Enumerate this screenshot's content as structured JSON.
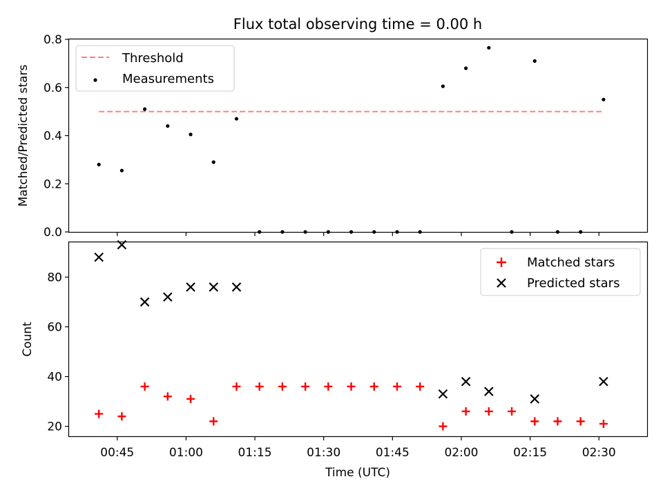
{
  "figure": {
    "title": "Flux total observing time = 0.00 h",
    "xlabel": "Time (UTC)",
    "x_ticks": [
      "00:45",
      "01:00",
      "01:15",
      "01:30",
      "01:45",
      "02:00",
      "02:15",
      "02:30"
    ],
    "x_tick_minutes": [
      45,
      60,
      75,
      90,
      105,
      120,
      135,
      150
    ],
    "xlim_minutes": [
      34.5,
      160.5
    ]
  },
  "chart_data": [
    {
      "type": "scatter",
      "ylabel": "Matched/Predicted stars",
      "ylim": [
        0,
        0.8
      ],
      "y_ticks": [
        "0.0",
        "0.2",
        "0.4",
        "0.6",
        "0.8"
      ],
      "y_tick_values": [
        0,
        0.2,
        0.4,
        0.6,
        0.8
      ],
      "legend": {
        "position": "upper-left",
        "entries": [
          "Threshold",
          "Measurements"
        ]
      },
      "threshold": {
        "name": "Threshold",
        "value": 0.5,
        "x_range": [
          "00:41",
          "02:31"
        ],
        "color": "#ff7f7f",
        "style": "dashed"
      },
      "series": [
        {
          "name": "Measurements",
          "color": "#000000",
          "marker": "dot",
          "x": [
            "00:41",
            "00:46",
            "00:51",
            "00:56",
            "01:01",
            "01:06",
            "01:11",
            "01:16",
            "01:21",
            "01:26",
            "01:31",
            "01:36",
            "01:41",
            "01:46",
            "01:51",
            "01:56",
            "02:01",
            "02:06",
            "02:11",
            "02:16",
            "02:21",
            "02:26",
            "02:31"
          ],
          "y": [
            0.28,
            0.255,
            0.51,
            0.44,
            0.405,
            0.29,
            0.47,
            0,
            0,
            0,
            0,
            0,
            0,
            0,
            0,
            0.605,
            0.68,
            0.765,
            0,
            0.71,
            0,
            0,
            0.55
          ]
        }
      ]
    },
    {
      "type": "scatter",
      "ylabel": "Count",
      "ylim": [
        16,
        94
      ],
      "y_ticks": [
        "20",
        "40",
        "60",
        "80"
      ],
      "y_tick_values": [
        20,
        40,
        60,
        80
      ],
      "legend": {
        "position": "upper-right",
        "entries": [
          "Matched stars",
          "Predicted stars"
        ]
      },
      "series": [
        {
          "name": "Matched stars",
          "color": "#ff0000",
          "marker": "plus",
          "x": [
            "00:41",
            "00:46",
            "00:51",
            "00:56",
            "01:01",
            "01:06",
            "01:11",
            "01:16",
            "01:21",
            "01:26",
            "01:31",
            "01:36",
            "01:41",
            "01:46",
            "01:51",
            "01:56",
            "02:01",
            "02:06",
            "02:11",
            "02:16",
            "02:21",
            "02:26",
            "02:31"
          ],
          "y": [
            25,
            24,
            36,
            32,
            31,
            22,
            36,
            36,
            36,
            36,
            36,
            36,
            36,
            36,
            36,
            20,
            26,
            26,
            26,
            22,
            22,
            22,
            21
          ]
        },
        {
          "name": "Predicted stars",
          "color": "#000000",
          "marker": "x",
          "x": [
            "00:41",
            "00:46",
            "00:51",
            "00:56",
            "01:01",
            "01:06",
            "01:11",
            "01:56",
            "02:01",
            "02:06",
            "02:16",
            "02:31"
          ],
          "y": [
            88,
            93,
            70,
            72,
            76,
            76,
            76,
            33,
            38,
            34,
            31,
            38
          ]
        }
      ]
    }
  ]
}
